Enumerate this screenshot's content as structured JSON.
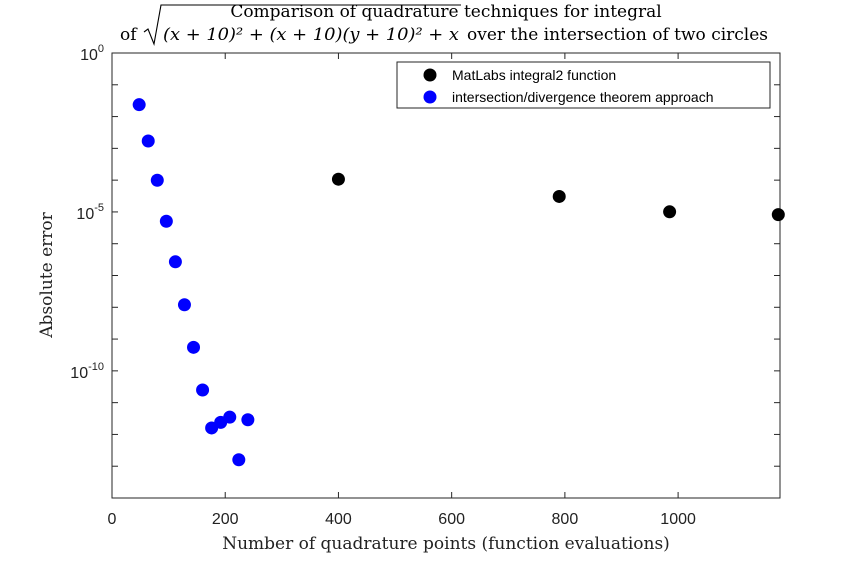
{
  "chart_data": {
    "type": "scatter",
    "title_line1": "Comparison of quadrature techniques for integral",
    "title_line2_prefix": "of",
    "title_formula": "(x + 10)² + (x + 10)(y + 10)² + x",
    "title_line2_suffix": "over the intersection of two circles",
    "xlabel": "Number of quadrature points (function evaluations)",
    "ylabel": "Absolute error",
    "xlim": [
      0,
      1180
    ],
    "ylim": [
      1e-14,
      1
    ],
    "y_scale": "log",
    "grid": false,
    "legend_position": "top-right",
    "x_ticks": [
      0,
      200,
      400,
      600,
      800,
      1000
    ],
    "x_tick_labels": [
      "0",
      "200",
      "400",
      "600",
      "800",
      "1000"
    ],
    "y_ticks": [
      {
        "value": 1,
        "base": "10",
        "exp": "0"
      },
      {
        "value": 1e-05,
        "base": "10",
        "exp": "-5"
      },
      {
        "value": 1e-10,
        "base": "10",
        "exp": "-10"
      }
    ],
    "series": [
      {
        "name": "MatLabs integral2 function",
        "color": "#000000",
        "x": [
          400,
          790,
          985,
          1177
        ],
        "y": [
          0.000107,
          3.07e-05,
          1.01e-05,
          8.23e-06
        ]
      },
      {
        "name": "intersection/divergence theorem approach",
        "color": "#0000ff",
        "x": [
          48,
          64,
          80,
          96,
          112,
          128,
          144,
          160,
          176,
          192,
          208,
          224,
          240
        ],
        "y": [
          0.0237,
          0.0017,
          9.9e-05,
          5.1e-06,
          2.7e-07,
          1.2e-08,
          5.5e-10,
          2.5e-11,
          1.6e-12,
          2.4e-12,
          3.5e-12,
          1.6e-13,
          2.9e-12
        ]
      }
    ]
  }
}
